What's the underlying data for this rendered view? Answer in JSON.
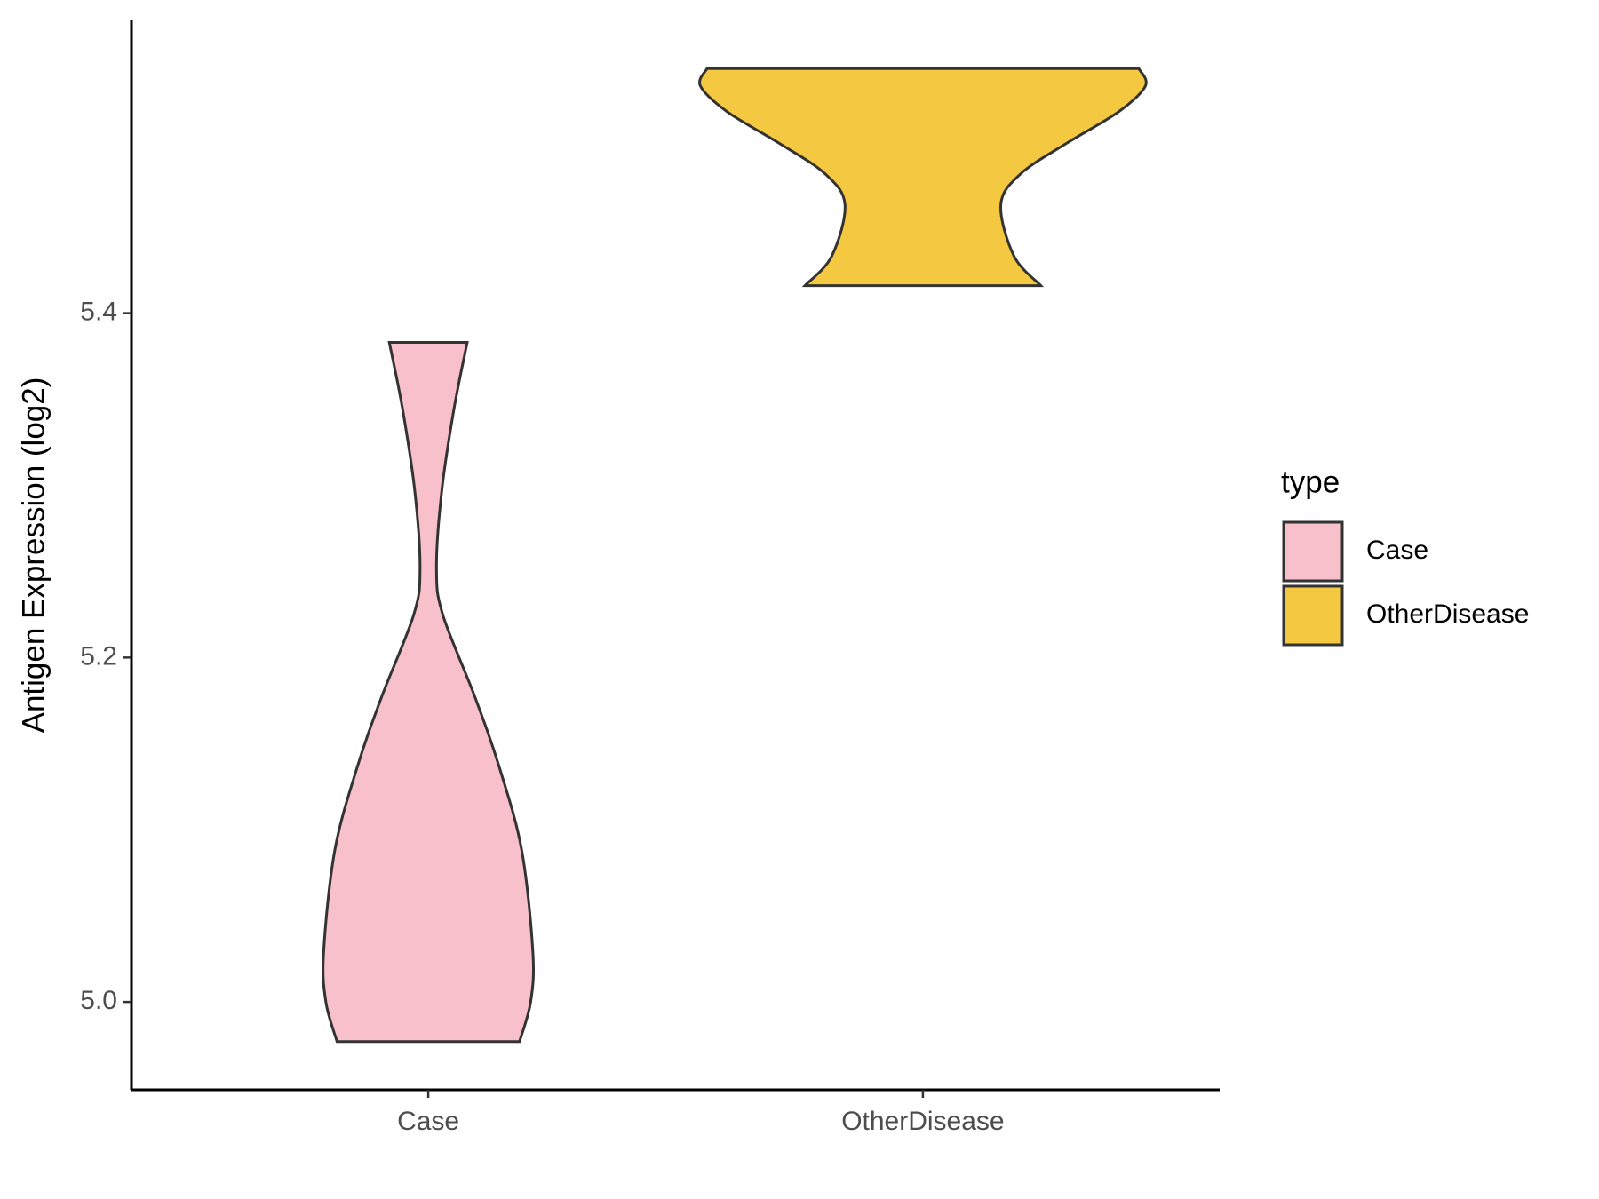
{
  "chart_data": {
    "type": "violin",
    "ylabel": "Antigen Expression (log2)",
    "categories": [
      "Case",
      "OtherDisease"
    ],
    "series": [
      {
        "name": "Case",
        "color": "#F7C0CB",
        "y": [
          4.977,
          5.0,
          5.029,
          5.088,
          5.136,
          5.177,
          5.225,
          5.252,
          5.296,
          5.344,
          5.383
        ],
        "width": [
          0.41,
          0.46,
          0.47,
          0.42,
          0.32,
          0.21,
          0.065,
          0.037,
          0.06,
          0.115,
          0.175
        ]
      },
      {
        "name": "OtherDisease",
        "color": "#F5C842",
        "y": [
          5.416,
          5.433,
          5.463,
          5.481,
          5.499,
          5.517,
          5.532,
          5.542
        ],
        "width": [
          0.53,
          0.41,
          0.35,
          0.44,
          0.65,
          0.88,
          1.0,
          0.97
        ]
      }
    ],
    "ylim": [
      4.949,
      5.57
    ],
    "yticks": [
      {
        "value": 5,
        "label": "5.0"
      },
      5.2,
      5.4
    ],
    "legend_title": "type",
    "legend": "right"
  }
}
